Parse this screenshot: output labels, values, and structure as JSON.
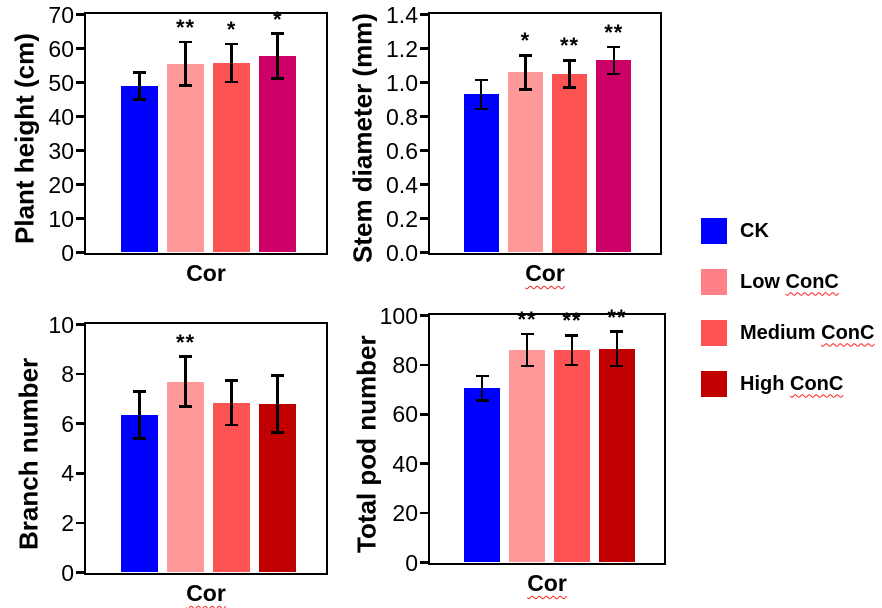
{
  "figure": {
    "description": "Four bar charts of soybean growth traits under Cor treatment",
    "x_category": "Cor"
  },
  "colors": {
    "background": "#FFFFFF",
    "axis": "#000000",
    "error_bar": "#000000",
    "significance_marker": "#000000",
    "spellcheck_underline": "#FF2020",
    "ck_blue": "#0000FF",
    "low_pink": "#FF9999",
    "medium_red": "#FF5252",
    "high_magenta_top_row": "#CC0066",
    "high_dark_red_bottom_row": "#C00000"
  },
  "chart_data": [
    {
      "id": "plant-height",
      "type": "bar",
      "ylabel": "Plant height (cm)",
      "xlabel": "Cor",
      "xlabel_spellcheck": false,
      "ylim": [
        0,
        70
      ],
      "yticks": [
        "0",
        "10",
        "20",
        "30",
        "40",
        "50",
        "60",
        "70"
      ],
      "categories": [
        "CK",
        "Low ConC",
        "Medium ConC",
        "High ConC"
      ],
      "values": [
        49,
        55.5,
        55.7,
        57.8
      ],
      "errors": [
        4,
        6.4,
        5.6,
        6.6
      ],
      "significance": [
        "",
        "**",
        "*",
        "*"
      ],
      "bar_colors": [
        "#0000FF",
        "#FF9999",
        "#FF5252",
        "#CC0066"
      ]
    },
    {
      "id": "stem-diameter",
      "type": "bar",
      "ylabel": "Stem diameter (mm)",
      "xlabel": "Cor",
      "xlabel_spellcheck": true,
      "ylim": [
        0,
        1.4
      ],
      "yticks": [
        "0.0",
        "0.2",
        "0.4",
        "0.6",
        "0.8",
        "1.0",
        "1.2",
        "1.4"
      ],
      "categories": [
        "CK",
        "Low ConC",
        "Medium ConC",
        "High ConC"
      ],
      "values": [
        0.93,
        1.06,
        1.05,
        1.13
      ],
      "errors": [
        0.085,
        0.1,
        0.08,
        0.08
      ],
      "significance": [
        "",
        "*",
        "**",
        "**"
      ],
      "bar_colors": [
        "#0000FF",
        "#FF9999",
        "#FF5252",
        "#CC0066"
      ]
    },
    {
      "id": "branch-number",
      "type": "bar",
      "ylabel": "Branch number",
      "xlabel": "Cor",
      "xlabel_spellcheck": true,
      "ylim": [
        0,
        10
      ],
      "yticks": [
        "0",
        "2",
        "4",
        "6",
        "8",
        "10"
      ],
      "categories": [
        "CK",
        "Low ConC",
        "Medium ConC",
        "High ConC"
      ],
      "values": [
        6.35,
        7.7,
        6.85,
        6.8
      ],
      "errors": [
        0.95,
        1.0,
        0.9,
        1.15
      ],
      "significance": [
        "",
        "**",
        "",
        ""
      ],
      "bar_colors": [
        "#0000FF",
        "#FF9999",
        "#FF5252",
        "#C00000"
      ]
    },
    {
      "id": "total-pod-number",
      "type": "bar",
      "ylabel": "Total pod number",
      "xlabel": "Cor",
      "xlabel_spellcheck": true,
      "ylim": [
        0,
        100
      ],
      "yticks": [
        "0",
        "20",
        "40",
        "60",
        "80",
        "100"
      ],
      "categories": [
        "CK",
        "Low ConC",
        "Medium ConC",
        "High ConC"
      ],
      "values": [
        70.5,
        86,
        86,
        86.5
      ],
      "errors": [
        5,
        6.5,
        6,
        7
      ],
      "significance": [
        "",
        "**",
        "**",
        "**"
      ],
      "bar_colors": [
        "#0000FF",
        "#FF9999",
        "#FF5252",
        "#C00000"
      ]
    }
  ],
  "legend": {
    "items": [
      {
        "name": "ck",
        "label": "CK",
        "spellcheck_word": "",
        "color": "#0000FF"
      },
      {
        "name": "low-conc",
        "label": "Low ",
        "spellcheck_word": "ConC",
        "color": "#FF8085"
      },
      {
        "name": "medium-conc",
        "label": "Medium ",
        "spellcheck_word": "ConC",
        "color": "#FF5252"
      },
      {
        "name": "high-conc",
        "label": "High ",
        "spellcheck_word": "ConC",
        "color": "#C00000"
      }
    ]
  }
}
